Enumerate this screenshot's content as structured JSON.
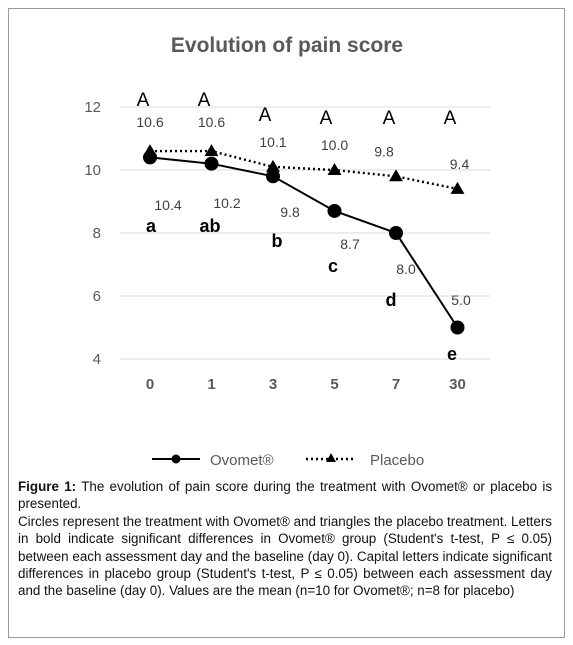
{
  "chart_data": {
    "type": "line",
    "title": "Evolution of pain score",
    "categories": [
      "0",
      "1",
      "3",
      "5",
      "7",
      "30"
    ],
    "ylim": [
      4,
      12
    ],
    "yticks": [
      4,
      6,
      8,
      10,
      12
    ],
    "grid": true,
    "legend_position": "bottom",
    "series": [
      {
        "name": "Ovomet®",
        "marker": "circle",
        "line_style": "solid",
        "values": [
          10.4,
          10.2,
          9.8,
          8.7,
          8.0,
          5.0
        ],
        "value_labels": [
          "10.4",
          "10.2",
          "9.8",
          "8.7",
          "8.0",
          "5.0"
        ],
        "letters": [
          "a",
          "ab",
          "b",
          "c",
          "d",
          "e"
        ]
      },
      {
        "name": "Placebo",
        "marker": "triangle",
        "line_style": "dotted",
        "values": [
          10.6,
          10.6,
          10.1,
          10.0,
          9.8,
          9.4
        ],
        "value_labels": [
          "10.6",
          "10.6",
          "10.1",
          "10.0",
          "9.8",
          "9.4"
        ],
        "letters": [
          "A",
          "A",
          "A",
          "A",
          "A",
          "A"
        ]
      }
    ]
  },
  "caption": {
    "figure_label": "Figure 1:",
    "text_1": "The evolution of pain score during the treatment with Ovomet® or placebo is presented.",
    "text_2": "Circles represent the treatment with Ovomet® and triangles the placebo treatment. Letters in bold indicate significant differences in Ovomet® group (Student's t-test, P ≤ 0.05) between each assessment day and the baseline (day 0). Capital letters indicate significant differences in placebo group (Student's t-test, P ≤ 0.05) between each assessment day and the baseline (day 0). Values are the mean (n=10 for Ovomet®; n=8 for placebo)"
  },
  "colors": {
    "line": "#000000",
    "grid": "#d9d9d9",
    "title": "#595959",
    "label": "#404040"
  }
}
